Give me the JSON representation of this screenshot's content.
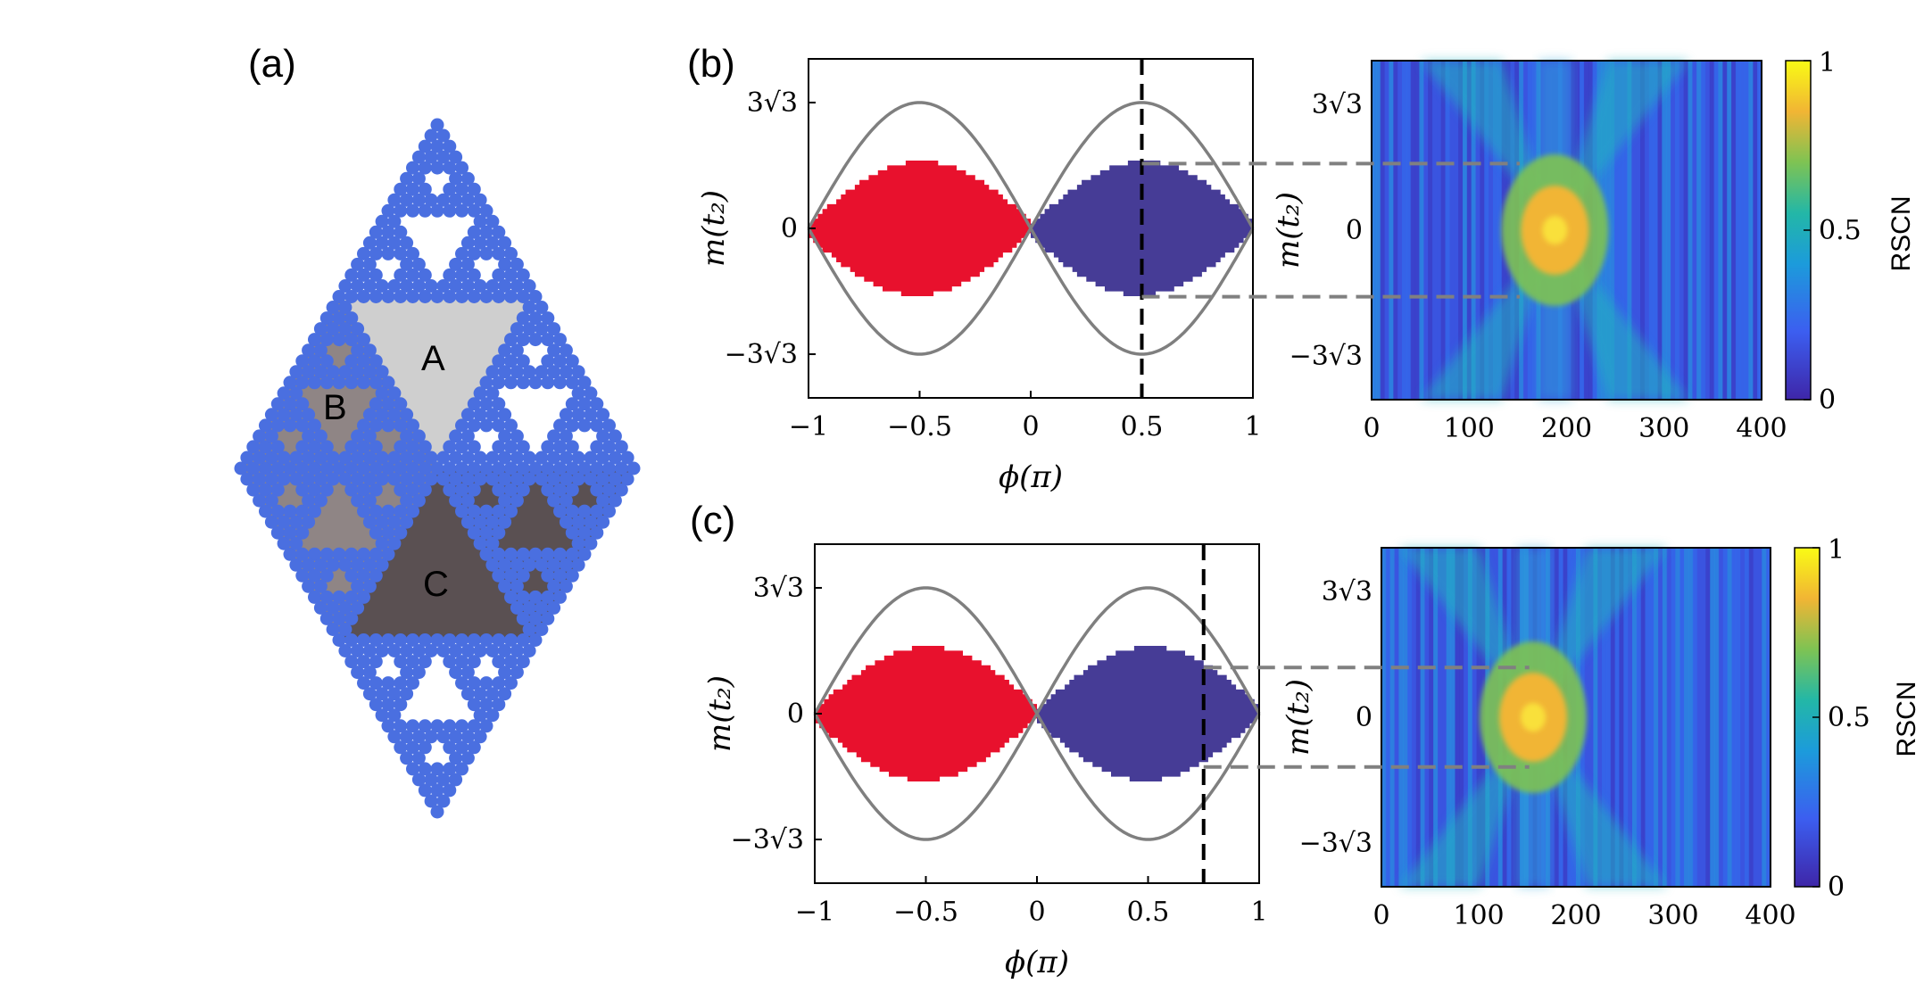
{
  "figure": {
    "panel_a": {
      "label": "(a)",
      "regions": [
        "A",
        "B",
        "C"
      ],
      "colors": {
        "lattice": "#4a6fe0",
        "A": "#cfcfcf",
        "B": "#8f8585",
        "C": "#5a5052"
      }
    },
    "panel_b": {
      "label": "(b)"
    },
    "panel_c": {
      "label": "(c)"
    },
    "colorbar": {
      "label": "RSCN",
      "ticks": [
        "0",
        "0.5",
        "1"
      ]
    }
  },
  "chart_data": [
    {
      "id": "b-left",
      "type": "area",
      "xlabel": "ϕ(π)",
      "ylabel": "m(t₂)",
      "xlim": [
        -1,
        1
      ],
      "ylim": [
        -7,
        7
      ],
      "xticks": [
        "−1",
        "−0.5",
        "0",
        "0.5",
        "1"
      ],
      "yticks": [
        "3√3",
        "0",
        "−3√3"
      ],
      "boundary": "±3√3·|sin(πϕ)|",
      "regions": [
        {
          "range": [
            -1,
            0
          ],
          "color": "#e8112d",
          "halfwidth_peak": 2.6
        },
        {
          "range": [
            0,
            1
          ],
          "color": "#463c96",
          "halfwidth_peak": 2.6
        }
      ],
      "cut_phi": 0.5
    },
    {
      "id": "b-right",
      "type": "heatmap",
      "xticks": [
        "0",
        "100",
        "200",
        "300",
        "400"
      ],
      "yticks": [
        "3√3",
        "0",
        "−3√3"
      ],
      "xlim": [
        0,
        400
      ],
      "zlim": [
        0,
        1
      ]
    },
    {
      "id": "c-left",
      "type": "area",
      "xlabel": "ϕ(π)",
      "ylabel": "m(t₂)",
      "xlim": [
        -1,
        1
      ],
      "ylim": [
        -7,
        7
      ],
      "xticks": [
        "−1",
        "−0.5",
        "0",
        "0.5",
        "1"
      ],
      "yticks": [
        "3√3",
        "0",
        "−3√3"
      ],
      "boundary": "±3√3·|sin(πϕ)|",
      "regions": [
        {
          "range": [
            -1,
            0
          ],
          "color": "#e8112d",
          "halfwidth_peak": 2.6
        },
        {
          "range": [
            0,
            1
          ],
          "color": "#463c96",
          "halfwidth_peak": 2.6
        }
      ],
      "cut_phi": 0.75
    },
    {
      "id": "c-right",
      "type": "heatmap",
      "xticks": [
        "0",
        "100",
        "200",
        "300",
        "400"
      ],
      "yticks": [
        "3√3",
        "0",
        "−3√3"
      ],
      "xlim": [
        0,
        400
      ],
      "zlim": [
        0,
        1
      ]
    }
  ]
}
